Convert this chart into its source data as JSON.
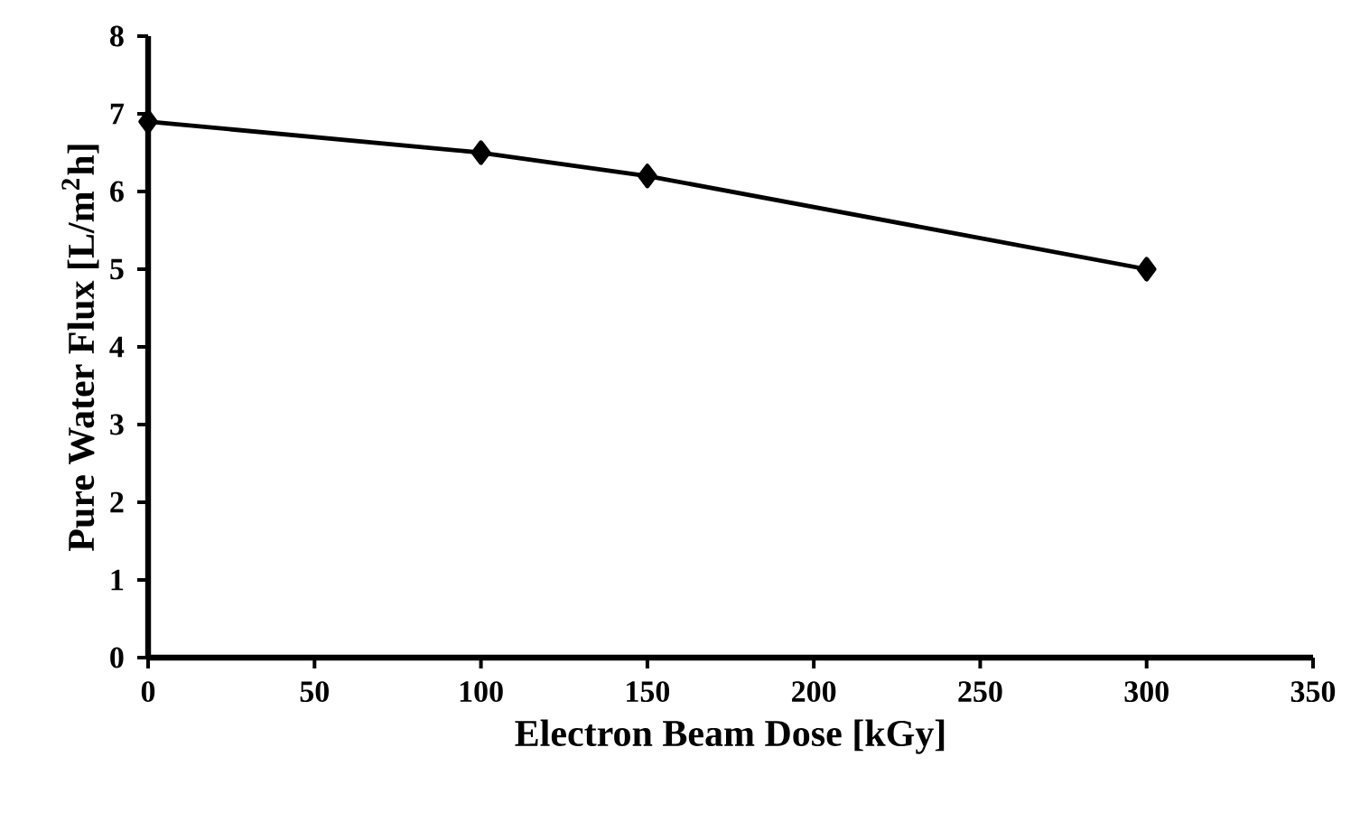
{
  "chart_data": {
    "type": "line",
    "xlabel": "Electron Beam Dose [kGy]",
    "ylabel": "Pure Water Flux [L/m$^{2}$h]",
    "x": [
      0,
      100,
      150,
      300
    ],
    "series": [
      {
        "color": "#000000",
        "values": [
          6.9,
          6.5,
          6.2,
          5.0
        ]
      }
    ],
    "xlim": [
      0,
      350
    ],
    "xticks": [
      0,
      50,
      100,
      150,
      200,
      250,
      300,
      350
    ],
    "ylim": [
      0,
      8
    ],
    "yticks": [
      0,
      1,
      2,
      3,
      4,
      5,
      6,
      7,
      8
    ],
    "grid": false,
    "marker": "diamond",
    "line_style": "solid"
  }
}
